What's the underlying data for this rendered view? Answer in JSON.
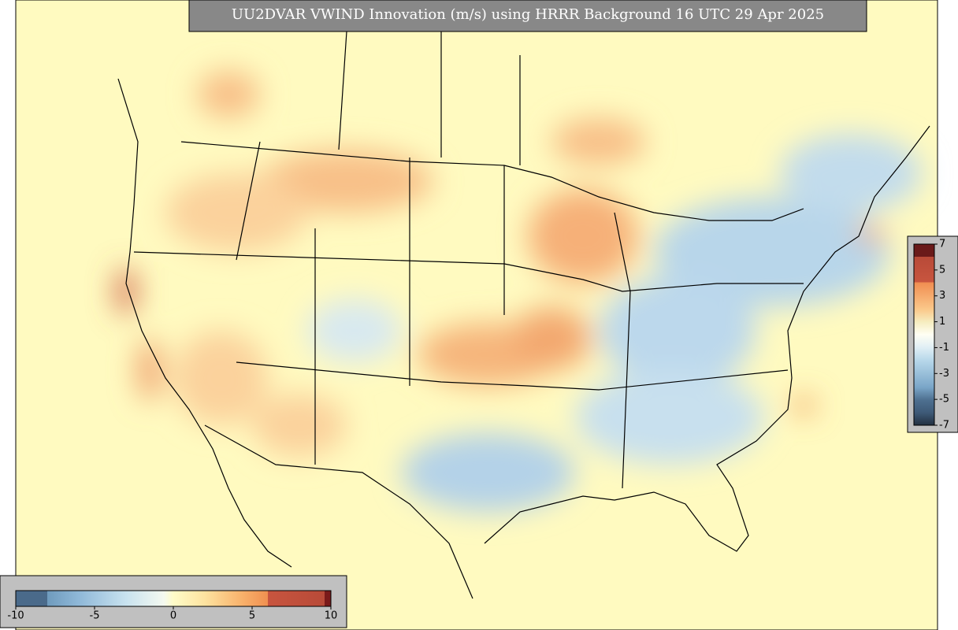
{
  "title": "UU2DVAR VWIND Innovation (m/s) using HRRR Background 16 UTC 29 Apr 2025",
  "colorbar_bottom": {
    "lim": [
      -10,
      10
    ],
    "ticks": [
      -10,
      -5,
      0,
      5,
      10
    ]
  },
  "colorbar_right": {
    "lim": [
      -7,
      7
    ],
    "ticks": [
      7,
      5,
      3,
      1,
      -1,
      -3,
      -5,
      -7
    ]
  }
}
